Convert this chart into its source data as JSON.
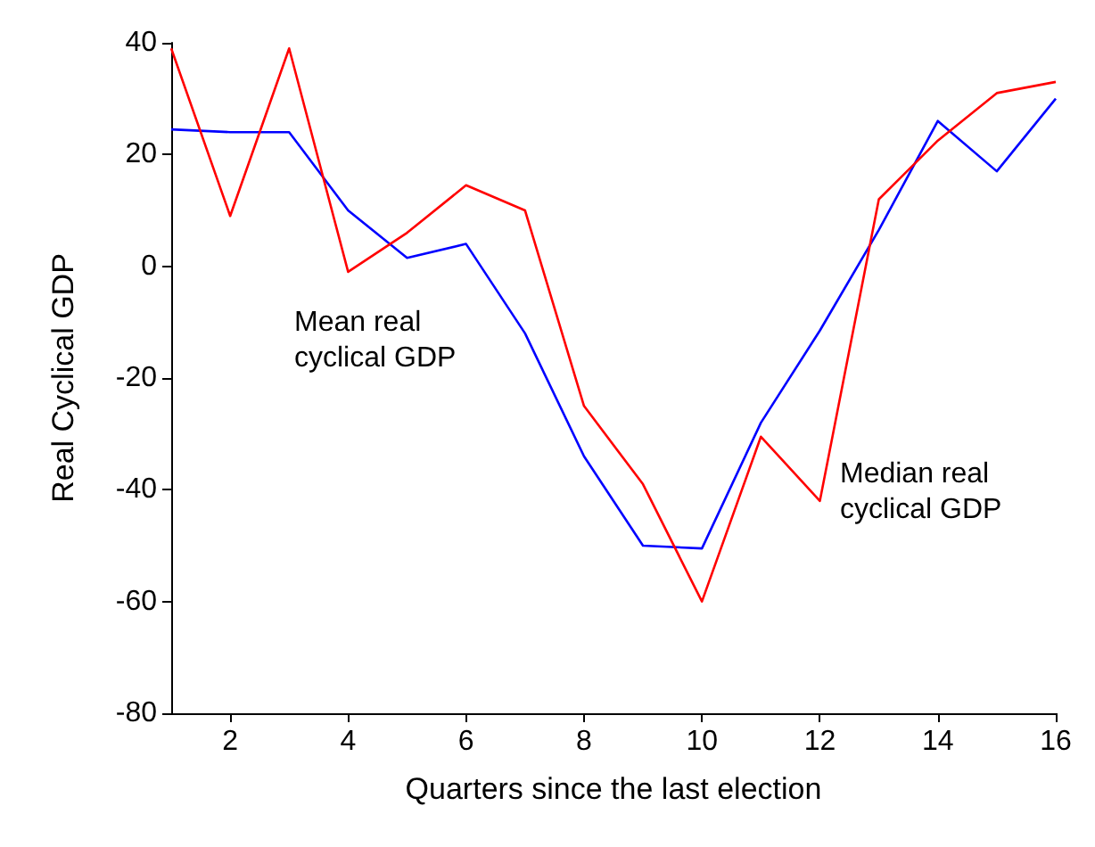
{
  "chart_data": {
    "type": "line",
    "xlabel": "Quarters since the last election",
    "ylabel": "Real Cyclical GDP",
    "x": [
      1,
      2,
      3,
      4,
      5,
      6,
      7,
      8,
      9,
      10,
      11,
      12,
      13,
      14,
      15,
      16
    ],
    "series": [
      {
        "color": "#0000ff",
        "values": [
          24.5,
          24,
          24,
          10,
          1.5,
          4,
          -12,
          -34,
          -50,
          -50.5,
          -28,
          -11.5,
          6.5,
          26,
          17,
          30
        ]
      },
      {
        "color": "#ff0000",
        "values": [
          39,
          9,
          39,
          -1,
          6,
          14.5,
          10,
          -25,
          -39,
          -60,
          -30.5,
          -42,
          12,
          22.5,
          31,
          33
        ]
      }
    ],
    "annotations": [
      "Mean real\ncyclical GDP",
      "Median real\ncyclical GDP"
    ],
    "xlim": [
      1,
      16
    ],
    "xticks": [
      2,
      4,
      6,
      8,
      10,
      12,
      14,
      16
    ],
    "ylim": [
      -80,
      40
    ],
    "yticks": [
      -80,
      -60,
      -40,
      -20,
      0,
      20,
      40
    ],
    "grid": false,
    "marker": "none",
    "line_style": "solid"
  }
}
